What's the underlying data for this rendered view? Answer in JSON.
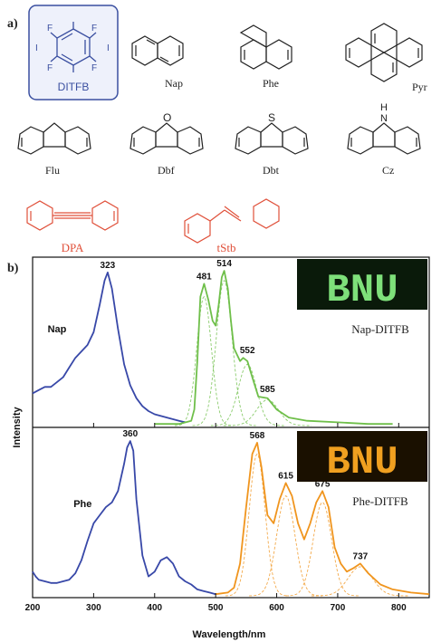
{
  "panel_a": {
    "label": "a)",
    "molecules": [
      {
        "id": "ditfb",
        "name": "DITFB",
        "color": "#3a4fa0",
        "highlight": true,
        "atoms": {
          "F": "F",
          "I": "I"
        }
      },
      {
        "id": "nap",
        "name": "Nap",
        "color": "#222222"
      },
      {
        "id": "phe",
        "name": "Phe",
        "color": "#222222"
      },
      {
        "id": "pyr",
        "name": "Pyr",
        "color": "#222222"
      },
      {
        "id": "flu",
        "name": "Flu",
        "color": "#222222"
      },
      {
        "id": "dbf",
        "name": "Dbf",
        "color": "#222222",
        "atom": "O"
      },
      {
        "id": "dbt",
        "name": "Dbt",
        "color": "#222222",
        "atom": "S"
      },
      {
        "id": "cz",
        "name": "Cz",
        "color": "#222222",
        "atom": "H\nN"
      },
      {
        "id": "dpa",
        "name": "DPA",
        "color": "#e0503a"
      },
      {
        "id": "tstb",
        "name": "tStb",
        "color": "#e0503a"
      }
    ]
  },
  "panel_b": {
    "label": "b)",
    "insets": [
      {
        "text": "BNU",
        "bg": "#0a1a0a",
        "fg": "#7ee07a",
        "caption": "Nap-DITFB"
      },
      {
        "text": "BNU",
        "bg": "#1a1000",
        "fg": "#f0a020",
        "caption": "Phe-DITFB"
      }
    ]
  },
  "chart_data": {
    "type": "line",
    "xlabel": "Wavelength/nm",
    "ylabel": "Intensity",
    "xlim": [
      200,
      850
    ],
    "xticks": [
      200,
      300,
      400,
      500,
      600,
      700,
      800
    ],
    "panels": [
      {
        "series": [
          {
            "name": "Nap",
            "color": "#3848a8",
            "style": "solid",
            "x": [
              200,
              210,
              220,
              230,
              240,
              250,
              260,
              270,
              280,
              290,
              300,
              310,
              318,
              323,
              330,
              340,
              350,
              360,
              370,
              380,
              390,
              400,
              420,
              440,
              450
            ],
            "y": [
              0.2,
              0.22,
              0.24,
              0.24,
              0.27,
              0.3,
              0.36,
              0.42,
              0.46,
              0.5,
              0.58,
              0.75,
              0.9,
              0.95,
              0.85,
              0.6,
              0.38,
              0.25,
              0.17,
              0.12,
              0.09,
              0.07,
              0.05,
              0.03,
              0.02
            ]
          },
          {
            "name": "Nap-DITFB emission",
            "color": "#6fbf4a",
            "style": "solid",
            "x": [
              400,
              440,
              460,
              465,
              470,
              475,
              481,
              488,
              495,
              500,
              505,
              510,
              514,
              520,
              525,
              530,
              540,
              545,
              552,
              560,
              570,
              585,
              600,
              620,
              650,
              700,
              750,
              790
            ],
            "y": [
              0.01,
              0.01,
              0.03,
              0.1,
              0.4,
              0.8,
              0.88,
              0.78,
              0.65,
              0.62,
              0.75,
              0.92,
              0.96,
              0.85,
              0.65,
              0.48,
              0.4,
              0.42,
              0.4,
              0.3,
              0.18,
              0.17,
              0.1,
              0.05,
              0.03,
              0.02,
              0.01,
              0.01
            ]
          }
        ],
        "components": [
          {
            "center": 481,
            "height": 0.8,
            "width": 12
          },
          {
            "center": 514,
            "height": 0.9,
            "width": 13
          },
          {
            "center": 552,
            "height": 0.38,
            "width": 15
          },
          {
            "center": 585,
            "height": 0.16,
            "width": 18
          }
        ],
        "component_color": "#6fbf4a",
        "peak_labels": [
          {
            "x": 323,
            "y": 0.95,
            "text": "323"
          },
          {
            "x": 481,
            "y": 0.88,
            "text": "481"
          },
          {
            "x": 514,
            "y": 0.96,
            "text": "514"
          },
          {
            "x": 552,
            "y": 0.42,
            "text": "552"
          },
          {
            "x": 585,
            "y": 0.18,
            "text": "585"
          }
        ],
        "series_label": {
          "text": "Nap",
          "x": 240,
          "y": 0.58
        }
      },
      {
        "series": [
          {
            "name": "Phe",
            "color": "#3848a8",
            "style": "solid",
            "x": [
              200,
              205,
              210,
              220,
              230,
              240,
              250,
              260,
              270,
              280,
              290,
              300,
              310,
              320,
              330,
              340,
              350,
              355,
              360,
              365,
              370,
              380,
              390,
              400,
              410,
              420,
              430,
              440,
              450,
              460,
              470,
              480,
              490,
              500
            ],
            "y": [
              0.15,
              0.12,
              0.1,
              0.09,
              0.08,
              0.08,
              0.09,
              0.1,
              0.14,
              0.22,
              0.34,
              0.45,
              0.5,
              0.55,
              0.58,
              0.65,
              0.82,
              0.92,
              0.96,
              0.9,
              0.6,
              0.25,
              0.12,
              0.15,
              0.22,
              0.24,
              0.2,
              0.12,
              0.09,
              0.07,
              0.04,
              0.03,
              0.02,
              0.01
            ]
          },
          {
            "name": "Phe-DITFB emission",
            "color": "#f0951e",
            "style": "solid",
            "x": [
              500,
              520,
              530,
              540,
              550,
              560,
              568,
              575,
              585,
              595,
              605,
              615,
              625,
              635,
              645,
              655,
              665,
              675,
              685,
              695,
              705,
              715,
              725,
              737,
              750,
              770,
              790,
              820,
              850
            ],
            "y": [
              0.01,
              0.02,
              0.05,
              0.2,
              0.55,
              0.88,
              0.95,
              0.8,
              0.5,
              0.45,
              0.6,
              0.7,
              0.62,
              0.45,
              0.35,
              0.45,
              0.58,
              0.65,
              0.55,
              0.3,
              0.2,
              0.15,
              0.17,
              0.2,
              0.14,
              0.07,
              0.04,
              0.02,
              0.01
            ]
          }
        ],
        "components": [
          {
            "center": 568,
            "height": 0.88,
            "width": 13
          },
          {
            "center": 615,
            "height": 0.62,
            "width": 15
          },
          {
            "center": 675,
            "height": 0.58,
            "width": 15
          },
          {
            "center": 737,
            "height": 0.18,
            "width": 20
          }
        ],
        "component_color": "#f0951e",
        "peak_labels": [
          {
            "x": 360,
            "y": 0.96,
            "text": "360"
          },
          {
            "x": 568,
            "y": 0.95,
            "text": "568"
          },
          {
            "x": 615,
            "y": 0.7,
            "text": "615"
          },
          {
            "x": 675,
            "y": 0.65,
            "text": "675"
          },
          {
            "x": 737,
            "y": 0.2,
            "text": "737"
          }
        ],
        "series_label": {
          "text": "Phe",
          "x": 282,
          "y": 0.55
        }
      }
    ]
  }
}
